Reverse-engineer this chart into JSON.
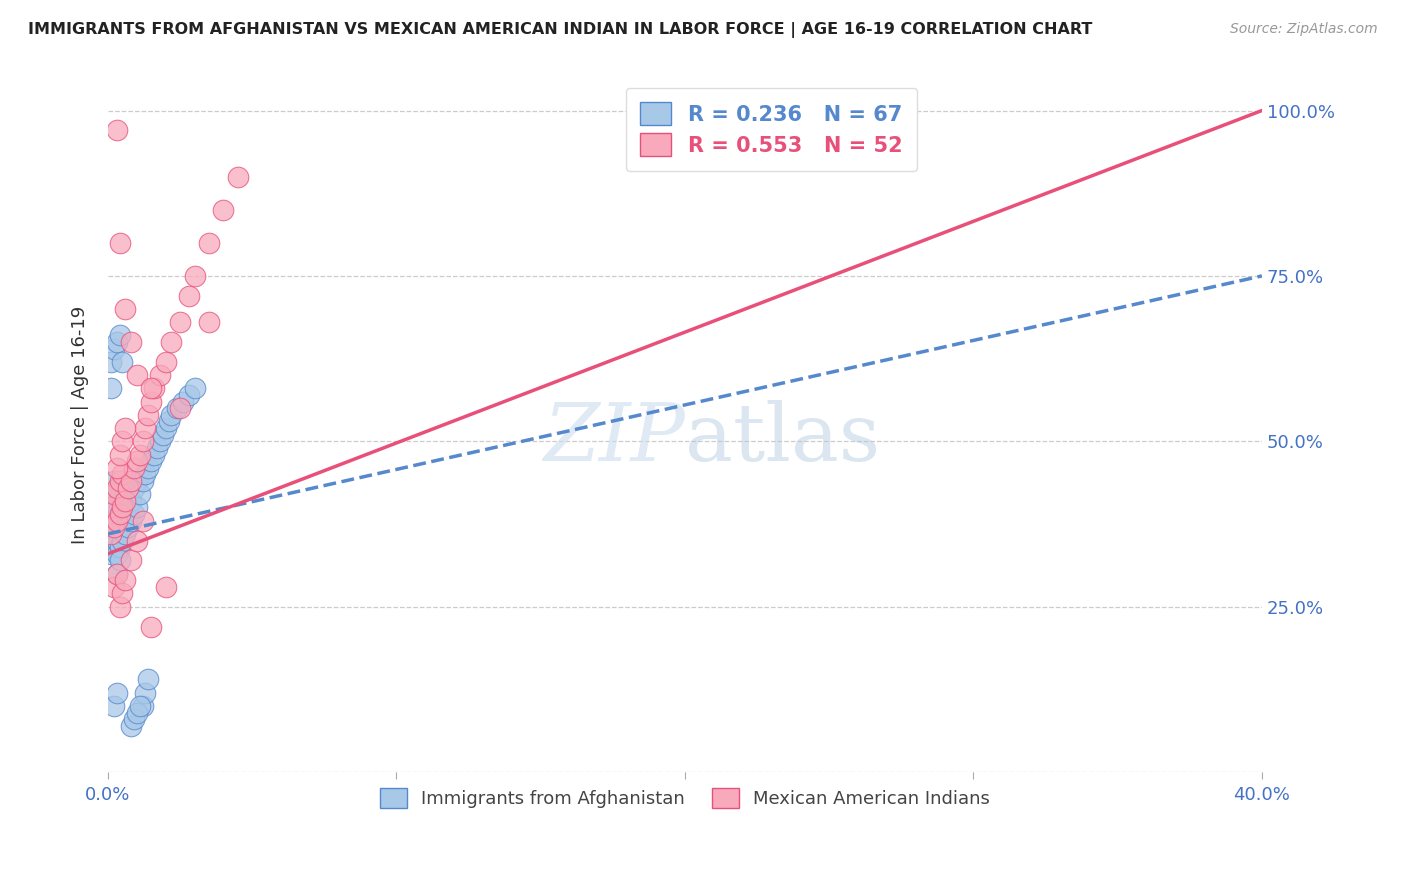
{
  "title": "IMMIGRANTS FROM AFGHANISTAN VS MEXICAN AMERICAN INDIAN IN LABOR FORCE | AGE 16-19 CORRELATION CHART",
  "source": "Source: ZipAtlas.com",
  "xlim": [
    0.0,
    0.4
  ],
  "ylim": [
    0.0,
    1.05
  ],
  "ylabel": "In Labor Force | Age 16-19",
  "legend1_label": "Immigrants from Afghanistan",
  "legend2_label": "Mexican American Indians",
  "r1": 0.236,
  "n1": 67,
  "r2": 0.553,
  "n2": 52,
  "color_blue_fill": "#a8c8e8",
  "color_blue_edge": "#5588cc",
  "color_pink_fill": "#f8aabc",
  "color_pink_edge": "#e8507a",
  "color_blue_line": "#5588cc",
  "color_pink_line": "#e8507a",
  "color_axis_labels": "#4472c4",
  "watermark_color": "#ccdcee",
  "blue_x": [
    0.001,
    0.001,
    0.001,
    0.001,
    0.002,
    0.002,
    0.002,
    0.002,
    0.002,
    0.003,
    0.003,
    0.003,
    0.003,
    0.003,
    0.003,
    0.004,
    0.004,
    0.004,
    0.004,
    0.005,
    0.005,
    0.005,
    0.005,
    0.006,
    0.006,
    0.006,
    0.007,
    0.007,
    0.008,
    0.008,
    0.009,
    0.009,
    0.01,
    0.01,
    0.011,
    0.012,
    0.013,
    0.014,
    0.015,
    0.016,
    0.017,
    0.018,
    0.019,
    0.02,
    0.021,
    0.022,
    0.024,
    0.026,
    0.028,
    0.03,
    0.001,
    0.001,
    0.002,
    0.003,
    0.004,
    0.005,
    0.003,
    0.004,
    0.002,
    0.003,
    0.012,
    0.013,
    0.014,
    0.008,
    0.009,
    0.01,
    0.011
  ],
  "blue_y": [
    0.33,
    0.36,
    0.38,
    0.4,
    0.34,
    0.37,
    0.39,
    0.42,
    0.44,
    0.33,
    0.35,
    0.38,
    0.4,
    0.42,
    0.35,
    0.34,
    0.37,
    0.39,
    0.42,
    0.35,
    0.38,
    0.41,
    0.44,
    0.36,
    0.39,
    0.42,
    0.37,
    0.4,
    0.38,
    0.41,
    0.39,
    0.43,
    0.4,
    0.44,
    0.42,
    0.44,
    0.45,
    0.46,
    0.47,
    0.48,
    0.49,
    0.5,
    0.51,
    0.52,
    0.53,
    0.54,
    0.55,
    0.56,
    0.57,
    0.58,
    0.58,
    0.62,
    0.64,
    0.65,
    0.66,
    0.62,
    0.3,
    0.32,
    0.1,
    0.12,
    0.1,
    0.12,
    0.14,
    0.07,
    0.08,
    0.09,
    0.1
  ],
  "pink_x": [
    0.001,
    0.001,
    0.002,
    0.002,
    0.003,
    0.003,
    0.004,
    0.004,
    0.005,
    0.005,
    0.006,
    0.007,
    0.008,
    0.009,
    0.01,
    0.011,
    0.012,
    0.013,
    0.014,
    0.015,
    0.016,
    0.018,
    0.02,
    0.022,
    0.025,
    0.028,
    0.03,
    0.035,
    0.04,
    0.045,
    0.003,
    0.004,
    0.005,
    0.006,
    0.002,
    0.003,
    0.004,
    0.005,
    0.006,
    0.008,
    0.01,
    0.012,
    0.015,
    0.02,
    0.003,
    0.004,
    0.006,
    0.008,
    0.01,
    0.015,
    0.025,
    0.035
  ],
  "pink_y": [
    0.36,
    0.4,
    0.37,
    0.42,
    0.38,
    0.43,
    0.39,
    0.44,
    0.4,
    0.45,
    0.41,
    0.43,
    0.44,
    0.46,
    0.47,
    0.48,
    0.5,
    0.52,
    0.54,
    0.56,
    0.58,
    0.6,
    0.62,
    0.65,
    0.68,
    0.72,
    0.75,
    0.8,
    0.85,
    0.9,
    0.46,
    0.48,
    0.5,
    0.52,
    0.28,
    0.3,
    0.25,
    0.27,
    0.29,
    0.32,
    0.35,
    0.38,
    0.22,
    0.28,
    0.97,
    0.8,
    0.7,
    0.65,
    0.6,
    0.58,
    0.55,
    0.68
  ],
  "pink_line_x0": 0.0,
  "pink_line_y0": 0.33,
  "pink_line_x1": 0.4,
  "pink_line_y1": 1.0,
  "blue_line_x0": 0.0,
  "blue_line_y0": 0.36,
  "blue_line_x1": 0.4,
  "blue_line_y1": 0.75
}
